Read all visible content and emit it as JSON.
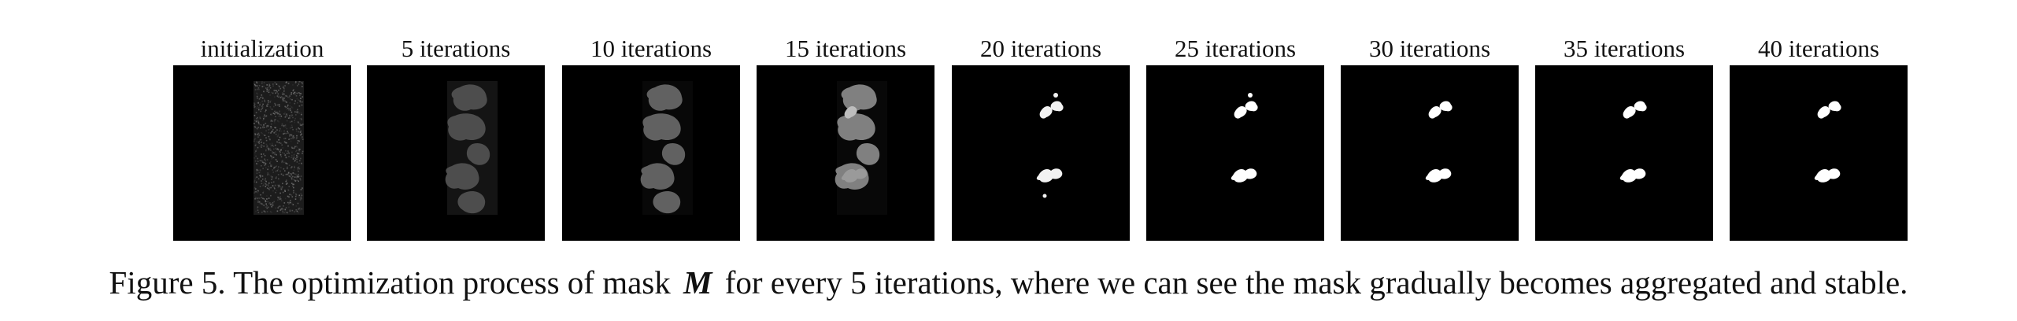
{
  "figure": {
    "panels": [
      {
        "title": "initialization",
        "state": "noise",
        "blob_intensity": 0.0
      },
      {
        "title": "5 iterations",
        "state": "blobs",
        "blob_intensity": 0.3
      },
      {
        "title": "10 iterations",
        "state": "blobs",
        "blob_intensity": 0.38
      },
      {
        "title": "15 iterations",
        "state": "blobs",
        "blob_intensity": 0.5
      },
      {
        "title": "20 iterations",
        "state": "blobs",
        "blob_intensity": 0.95
      },
      {
        "title": "25 iterations",
        "state": "blobs",
        "blob_intensity": 1.0
      },
      {
        "title": "30 iterations",
        "state": "blobs",
        "blob_intensity": 1.0
      },
      {
        "title": "35 iterations",
        "state": "blobs",
        "blob_intensity": 1.0
      },
      {
        "title": "40 iterations",
        "state": "blobs",
        "blob_intensity": 1.0
      }
    ],
    "caption": {
      "before": "Figure 5. The optimization process of mask",
      "variable": "M",
      "after": "for every 5 iterations, where we can see the mask gradually becomes aggregated and stable."
    }
  }
}
